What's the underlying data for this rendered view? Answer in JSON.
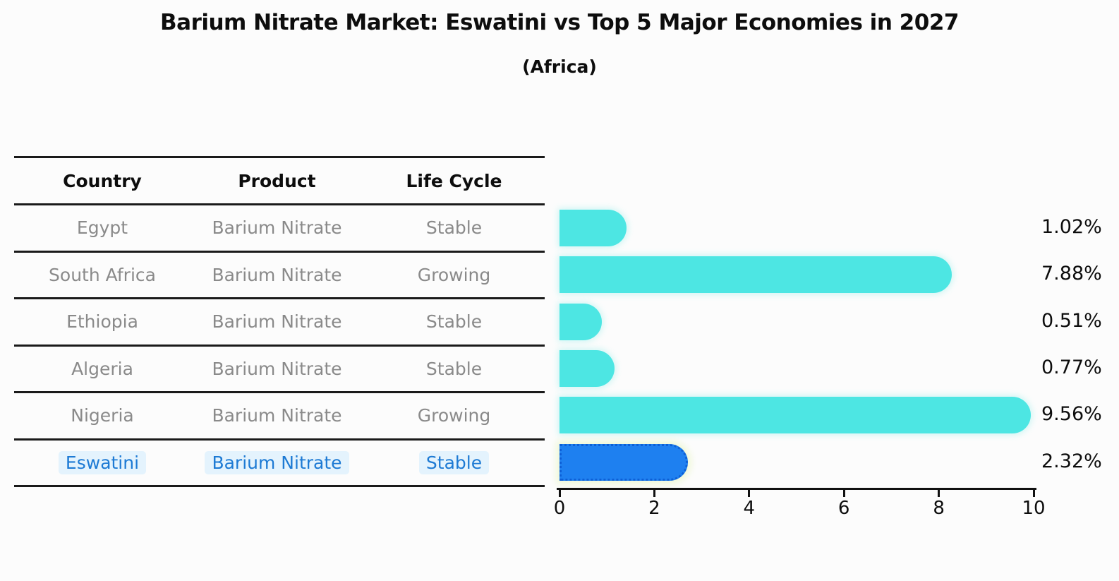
{
  "chart_data": {
    "type": "bar",
    "orientation": "horizontal",
    "title": "Barium Nitrate Market: Eswatini vs Top 5 Major Economies in 2027",
    "subtitle": "(Africa)",
    "categories": [
      "Egypt",
      "South Africa",
      "Ethiopia",
      "Algeria",
      "Nigeria",
      "Eswatini"
    ],
    "values": [
      1.02,
      7.88,
      0.51,
      0.77,
      9.56,
      2.32
    ],
    "value_labels": [
      "1.02%",
      "7.88%",
      "0.51%",
      "0.77%",
      "9.56%",
      "2.32%"
    ],
    "xlim": [
      0,
      10
    ],
    "xticks": [
      "0",
      "2",
      "4",
      "6",
      "8",
      "10"
    ],
    "grid": false,
    "legend": "none",
    "highlight_index": 5,
    "bar_color": "#4de6e3",
    "highlight_bar_color": "#1e80f0",
    "highlight_border_color": "#0d5fd6"
  },
  "table": {
    "headers": [
      "Country",
      "Product",
      "Life Cycle"
    ],
    "rows": [
      [
        "Egypt",
        "Barium Nitrate",
        "Stable"
      ],
      [
        "South Africa",
        "Barium Nitrate",
        "Growing"
      ],
      [
        "Ethiopia",
        "Barium Nitrate",
        "Stable"
      ],
      [
        "Algeria",
        "Barium Nitrate",
        "Stable"
      ],
      [
        "Nigeria",
        "Barium Nitrate",
        "Growing"
      ],
      [
        "Eswatini",
        "Barium Nitrate",
        "Stable"
      ]
    ],
    "row_text_color": "#8a8a8a",
    "highlight_row_index": 5,
    "highlight_text_color": "#1d7ad4"
  }
}
